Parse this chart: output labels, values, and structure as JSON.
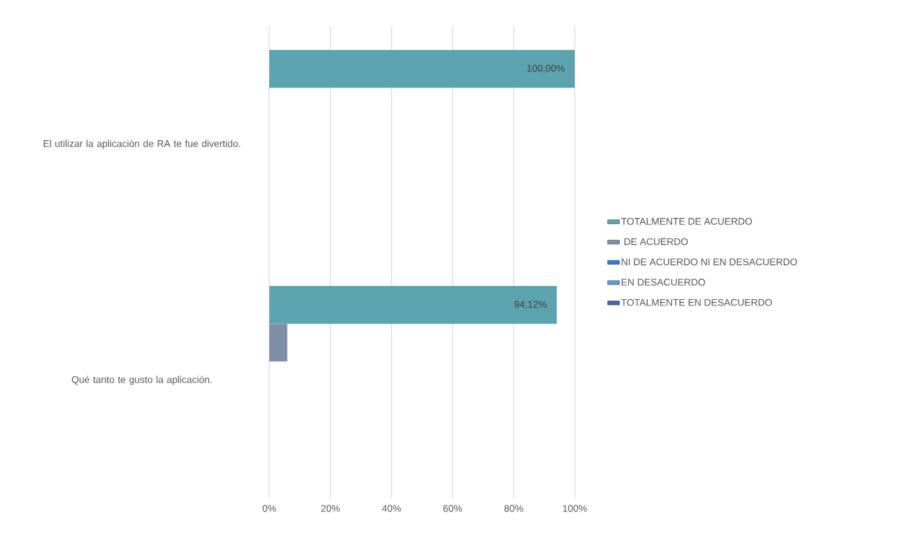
{
  "chart_data": {
    "type": "bar",
    "orientation": "horizontal",
    "categories": [
      "El utilizar la aplicación de RA te fue divertido.",
      "Qué tanto te gusto la aplicación."
    ],
    "series": [
      {
        "name": "TOTALMENTE DE ACUERDO",
        "color": "#5ba3af",
        "values": [
          100,
          94.12
        ],
        "value_labels": [
          "100,00%",
          "94,12%"
        ]
      },
      {
        "name": " DE ACUERDO",
        "color": "#7f8fa9",
        "values": [
          0,
          5.88
        ]
      },
      {
        "name": "NI DE ACUERDO NI EN DESACUERDO",
        "color": "#2e7dd7",
        "values": [
          0,
          0
        ]
      },
      {
        "name": "EN DESACUERDO",
        "color": "#5b9bd5",
        "values": [
          0,
          0
        ]
      },
      {
        "name": "TOTALMENTE EN DESACUERDO",
        "color": "#4a63a8",
        "values": [
          0,
          0
        ]
      }
    ],
    "xlim": [
      0,
      100
    ],
    "xticks": [
      {
        "value": 0,
        "label": "0%"
      },
      {
        "value": 20,
        "label": "20%"
      },
      {
        "value": 40,
        "label": "40%"
      },
      {
        "value": 60,
        "label": "60%"
      },
      {
        "value": 80,
        "label": "80%"
      },
      {
        "value": 100,
        "label": "100%"
      }
    ],
    "grid": "x",
    "legend": "right"
  }
}
